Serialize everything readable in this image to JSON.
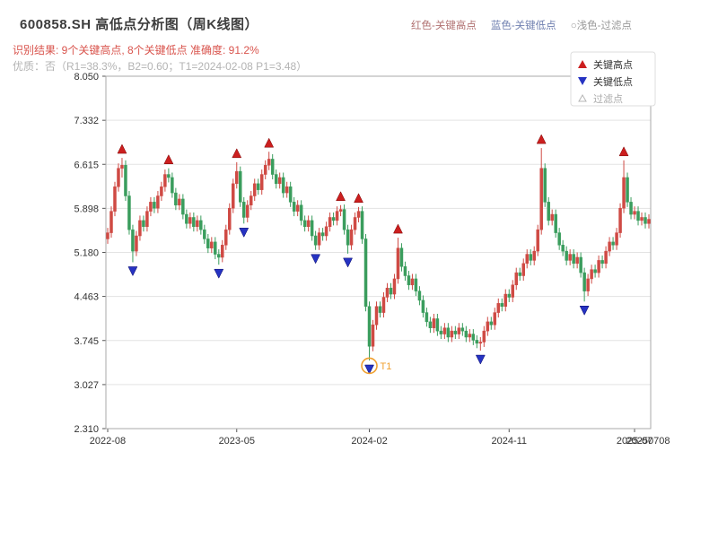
{
  "header": {
    "title": "600858.SH 高低点分析图（周K线图）",
    "legend_top": [
      {
        "label": "红色-关键高点",
        "color": "#b07070"
      },
      {
        "label": "蓝色-关键低点",
        "color": "#7080b0"
      },
      {
        "label": "○浅色-过滤点",
        "color": "#999999"
      }
    ],
    "result_line": "识别结果: 9个关键高点, 8个关键低点  准确度: 91.2%",
    "quality_line": "优质：否（R1=38.3%，B2=0.60；T1=2024-02-08 P1=3.48）"
  },
  "chart_data": {
    "type": "candlestick",
    "title": "600858.SH 高低点分析图（周K线图）",
    "xlabel": "",
    "ylabel": "",
    "ylim": [
      2.31,
      8.05
    ],
    "y_ticks": [
      8.05,
      7.332,
      6.615,
      5.898,
      5.18,
      4.463,
      3.745,
      3.027,
      2.31
    ],
    "x_ticks": [
      {
        "index": 0,
        "label": "2022-08"
      },
      {
        "index": 36,
        "label": "2023-05"
      },
      {
        "index": 73,
        "label": "2024-02"
      },
      {
        "index": 112,
        "label": "2024-11"
      },
      {
        "index": 147,
        "label": "2025-07"
      }
    ],
    "right_edge_label": "20250708",
    "grid": true,
    "legend_position": "upper-right",
    "colors": {
      "up": "#cf4a44",
      "down": "#3a9d5d",
      "key_high": "#cc1f1f",
      "key_low": "#2633c2",
      "filtered": "#b5b5b5",
      "t1_circle": "#f0a030",
      "grid": "#e3e3e3",
      "axis": "#555555",
      "box": "#aaaaaa"
    },
    "legend_box": [
      {
        "marker": "up-triangle",
        "label": "关键高点",
        "color": "#cc1f1f",
        "text_color": "#333333"
      },
      {
        "marker": "down-triangle",
        "label": "关键低点",
        "color": "#2633c2",
        "text_color": "#333333"
      },
      {
        "marker": "triangle-outline",
        "label": "过滤点",
        "color": "#b5b5b5",
        "text_color": "#aaaaaa"
      }
    ],
    "key_highs": [
      {
        "index": 4,
        "price": 6.72
      },
      {
        "index": 17,
        "price": 6.55
      },
      {
        "index": 36,
        "price": 6.65
      },
      {
        "index": 45,
        "price": 6.82
      },
      {
        "index": 65,
        "price": 5.95
      },
      {
        "index": 70,
        "price": 5.92
      },
      {
        "index": 81,
        "price": 5.42
      },
      {
        "index": 121,
        "price": 6.88
      },
      {
        "index": 144,
        "price": 6.68
      }
    ],
    "key_lows": [
      {
        "index": 7,
        "price": 5.02
      },
      {
        "index": 31,
        "price": 4.98
      },
      {
        "index": 38,
        "price": 5.65
      },
      {
        "index": 58,
        "price": 5.22
      },
      {
        "index": 67,
        "price": 5.16
      },
      {
        "index": 73,
        "price": 3.42
      },
      {
        "index": 104,
        "price": 3.58
      },
      {
        "index": 133,
        "price": 4.38
      }
    ],
    "t1": {
      "index": 73,
      "price": 3.48,
      "label": "T1",
      "date": "2024-02-08"
    },
    "candles": [
      [
        5.4,
        5.58,
        5.32,
        5.5
      ],
      [
        5.5,
        5.93,
        5.42,
        5.85
      ],
      [
        5.85,
        6.33,
        5.77,
        6.25
      ],
      [
        6.25,
        6.63,
        6.17,
        6.55
      ],
      [
        6.55,
        6.72,
        6.4,
        6.6
      ],
      [
        6.6,
        6.68,
        6.02,
        6.1
      ],
      [
        6.1,
        6.18,
        5.47,
        5.55
      ],
      [
        5.55,
        5.63,
        5.02,
        5.2
      ],
      [
        5.2,
        5.53,
        5.12,
        5.45
      ],
      [
        5.45,
        5.78,
        5.37,
        5.7
      ],
      [
        5.7,
        5.78,
        5.52,
        5.6
      ],
      [
        5.6,
        5.93,
        5.52,
        5.85
      ],
      [
        5.85,
        6.08,
        5.77,
        6.0
      ],
      [
        6.0,
        6.08,
        5.82,
        5.9
      ],
      [
        5.9,
        6.18,
        5.82,
        6.1
      ],
      [
        6.1,
        6.33,
        6.02,
        6.25
      ],
      [
        6.25,
        6.53,
        6.17,
        6.45
      ],
      [
        6.45,
        6.55,
        6.32,
        6.4
      ],
      [
        6.4,
        6.48,
        6.07,
        6.15
      ],
      [
        6.15,
        6.23,
        5.87,
        5.95
      ],
      [
        5.95,
        6.13,
        5.87,
        6.05
      ],
      [
        6.05,
        6.13,
        5.72,
        5.8
      ],
      [
        5.8,
        5.88,
        5.57,
        5.65
      ],
      [
        5.65,
        5.83,
        5.57,
        5.75
      ],
      [
        5.75,
        5.83,
        5.52,
        5.6
      ],
      [
        5.6,
        5.78,
        5.52,
        5.7
      ],
      [
        5.7,
        5.78,
        5.47,
        5.55
      ],
      [
        5.55,
        5.63,
        5.32,
        5.4
      ],
      [
        5.4,
        5.48,
        5.17,
        5.25
      ],
      [
        5.25,
        5.43,
        5.17,
        5.35
      ],
      [
        5.35,
        5.43,
        5.07,
        5.15
      ],
      [
        5.15,
        5.23,
        4.98,
        5.1
      ],
      [
        5.1,
        5.38,
        5.02,
        5.3
      ],
      [
        5.3,
        5.63,
        5.22,
        5.55
      ],
      [
        5.55,
        5.98,
        5.47,
        5.9
      ],
      [
        5.9,
        6.38,
        5.82,
        6.3
      ],
      [
        6.3,
        6.65,
        6.22,
        6.5
      ],
      [
        6.5,
        6.58,
        5.92,
        6.0
      ],
      [
        6.0,
        6.08,
        5.65,
        5.75
      ],
      [
        5.75,
        6.03,
        5.67,
        5.95
      ],
      [
        5.95,
        6.18,
        5.87,
        6.1
      ],
      [
        6.1,
        6.38,
        6.02,
        6.3
      ],
      [
        6.3,
        6.38,
        6.12,
        6.2
      ],
      [
        6.2,
        6.53,
        6.12,
        6.45
      ],
      [
        6.45,
        6.68,
        6.37,
        6.6
      ],
      [
        6.6,
        6.82,
        6.52,
        6.7
      ],
      [
        6.7,
        6.78,
        6.37,
        6.45
      ],
      [
        6.45,
        6.53,
        6.22,
        6.3
      ],
      [
        6.3,
        6.48,
        6.22,
        6.4
      ],
      [
        6.4,
        6.48,
        6.07,
        6.15
      ],
      [
        6.15,
        6.33,
        6.07,
        6.25
      ],
      [
        6.25,
        6.33,
        5.92,
        6.0
      ],
      [
        6.0,
        6.08,
        5.77,
        5.85
      ],
      [
        5.85,
        6.03,
        5.77,
        5.95
      ],
      [
        5.95,
        6.03,
        5.62,
        5.7
      ],
      [
        5.7,
        5.78,
        5.52,
        5.6
      ],
      [
        5.6,
        5.78,
        5.52,
        5.7
      ],
      [
        5.7,
        5.78,
        5.37,
        5.45
      ],
      [
        5.45,
        5.53,
        5.22,
        5.3
      ],
      [
        5.3,
        5.58,
        5.22,
        5.5
      ],
      [
        5.5,
        5.58,
        5.37,
        5.45
      ],
      [
        5.45,
        5.68,
        5.37,
        5.6
      ],
      [
        5.6,
        5.83,
        5.52,
        5.75
      ],
      [
        5.75,
        5.83,
        5.62,
        5.7
      ],
      [
        5.7,
        5.93,
        5.62,
        5.85
      ],
      [
        5.85,
        5.95,
        5.77,
        5.88
      ],
      [
        5.88,
        5.96,
        5.47,
        5.55
      ],
      [
        5.55,
        5.63,
        5.16,
        5.3
      ],
      [
        5.3,
        5.63,
        5.22,
        5.55
      ],
      [
        5.55,
        5.83,
        5.47,
        5.75
      ],
      [
        5.75,
        5.92,
        5.67,
        5.85
      ],
      [
        5.85,
        5.93,
        5.32,
        5.4
      ],
      [
        5.4,
        5.48,
        4.22,
        4.3
      ],
      [
        4.3,
        4.38,
        3.42,
        3.65
      ],
      [
        3.65,
        4.08,
        3.57,
        4.0
      ],
      [
        4.0,
        4.38,
        3.92,
        4.3
      ],
      [
        4.3,
        4.38,
        4.12,
        4.2
      ],
      [
        4.2,
        4.53,
        4.12,
        4.45
      ],
      [
        4.45,
        4.68,
        4.37,
        4.6
      ],
      [
        4.6,
        4.68,
        4.42,
        4.5
      ],
      [
        4.5,
        4.83,
        4.42,
        4.75
      ],
      [
        4.75,
        5.42,
        4.67,
        5.25
      ],
      [
        5.25,
        5.33,
        4.87,
        4.95
      ],
      [
        4.95,
        5.03,
        4.72,
        4.8
      ],
      [
        4.8,
        4.88,
        4.57,
        4.65
      ],
      [
        4.65,
        4.83,
        4.57,
        4.75
      ],
      [
        4.75,
        4.83,
        4.47,
        4.55
      ],
      [
        4.55,
        4.63,
        4.32,
        4.4
      ],
      [
        4.4,
        4.48,
        4.12,
        4.2
      ],
      [
        4.2,
        4.28,
        3.97,
        4.05
      ],
      [
        4.05,
        4.13,
        3.87,
        3.95
      ],
      [
        3.95,
        4.18,
        3.87,
        4.1
      ],
      [
        4.1,
        4.18,
        3.82,
        3.9
      ],
      [
        3.9,
        3.98,
        3.77,
        3.85
      ],
      [
        3.85,
        4.03,
        3.77,
        3.95
      ],
      [
        3.95,
        4.03,
        3.72,
        3.8
      ],
      [
        3.8,
        3.98,
        3.72,
        3.9
      ],
      [
        3.9,
        3.98,
        3.77,
        3.85
      ],
      [
        3.85,
        4.03,
        3.77,
        3.95
      ],
      [
        3.95,
        4.03,
        3.82,
        3.9
      ],
      [
        3.9,
        3.98,
        3.72,
        3.8
      ],
      [
        3.8,
        3.93,
        3.72,
        3.85
      ],
      [
        3.85,
        3.93,
        3.67,
        3.75
      ],
      [
        3.75,
        3.83,
        3.62,
        3.7
      ],
      [
        3.7,
        3.8,
        3.58,
        3.72
      ],
      [
        3.72,
        3.98,
        3.64,
        3.9
      ],
      [
        3.9,
        4.13,
        3.82,
        4.05
      ],
      [
        4.05,
        4.13,
        3.92,
        4.0
      ],
      [
        4.0,
        4.28,
        3.92,
        4.2
      ],
      [
        4.2,
        4.43,
        4.12,
        4.35
      ],
      [
        4.35,
        4.43,
        4.22,
        4.3
      ],
      [
        4.3,
        4.58,
        4.22,
        4.5
      ],
      [
        4.5,
        4.58,
        4.37,
        4.45
      ],
      [
        4.45,
        4.73,
        4.37,
        4.65
      ],
      [
        4.65,
        4.93,
        4.57,
        4.85
      ],
      [
        4.85,
        4.93,
        4.72,
        4.8
      ],
      [
        4.8,
        5.08,
        4.72,
        5.0
      ],
      [
        5.0,
        5.23,
        4.92,
        5.15
      ],
      [
        5.15,
        5.23,
        4.97,
        5.05
      ],
      [
        5.05,
        5.28,
        4.97,
        5.2
      ],
      [
        5.2,
        5.63,
        5.12,
        5.55
      ],
      [
        5.55,
        6.88,
        5.47,
        6.55
      ],
      [
        6.55,
        6.63,
        5.92,
        6.0
      ],
      [
        6.0,
        6.08,
        5.62,
        5.7
      ],
      [
        5.7,
        5.88,
        5.62,
        5.8
      ],
      [
        5.8,
        5.88,
        5.42,
        5.5
      ],
      [
        5.5,
        5.58,
        5.22,
        5.3
      ],
      [
        5.3,
        5.38,
        5.12,
        5.2
      ],
      [
        5.2,
        5.28,
        4.97,
        5.05
      ],
      [
        5.05,
        5.23,
        4.97,
        5.15
      ],
      [
        5.15,
        5.23,
        4.92,
        5.0
      ],
      [
        5.0,
        5.18,
        4.92,
        5.1
      ],
      [
        5.1,
        5.18,
        4.77,
        4.85
      ],
      [
        4.85,
        4.93,
        4.38,
        4.55
      ],
      [
        4.55,
        4.83,
        4.47,
        4.75
      ],
      [
        4.75,
        4.98,
        4.67,
        4.9
      ],
      [
        4.9,
        4.98,
        4.77,
        4.85
      ],
      [
        4.85,
        5.13,
        4.77,
        5.05
      ],
      [
        5.05,
        5.13,
        4.92,
        5.0
      ],
      [
        5.0,
        5.28,
        4.92,
        5.2
      ],
      [
        5.2,
        5.43,
        5.12,
        5.35
      ],
      [
        5.35,
        5.43,
        5.22,
        5.3
      ],
      [
        5.3,
        5.58,
        5.22,
        5.5
      ],
      [
        5.5,
        5.98,
        5.42,
        5.9
      ],
      [
        5.9,
        6.68,
        5.82,
        6.4
      ],
      [
        6.4,
        6.48,
        5.92,
        6.0
      ],
      [
        6.0,
        6.08,
        5.72,
        5.8
      ],
      [
        5.8,
        5.93,
        5.72,
        5.85
      ],
      [
        5.85,
        5.93,
        5.62,
        5.7
      ],
      [
        5.7,
        5.83,
        5.62,
        5.75
      ],
      [
        5.75,
        5.83,
        5.57,
        5.65
      ],
      [
        5.65,
        5.8,
        5.57,
        5.72
      ]
    ]
  }
}
